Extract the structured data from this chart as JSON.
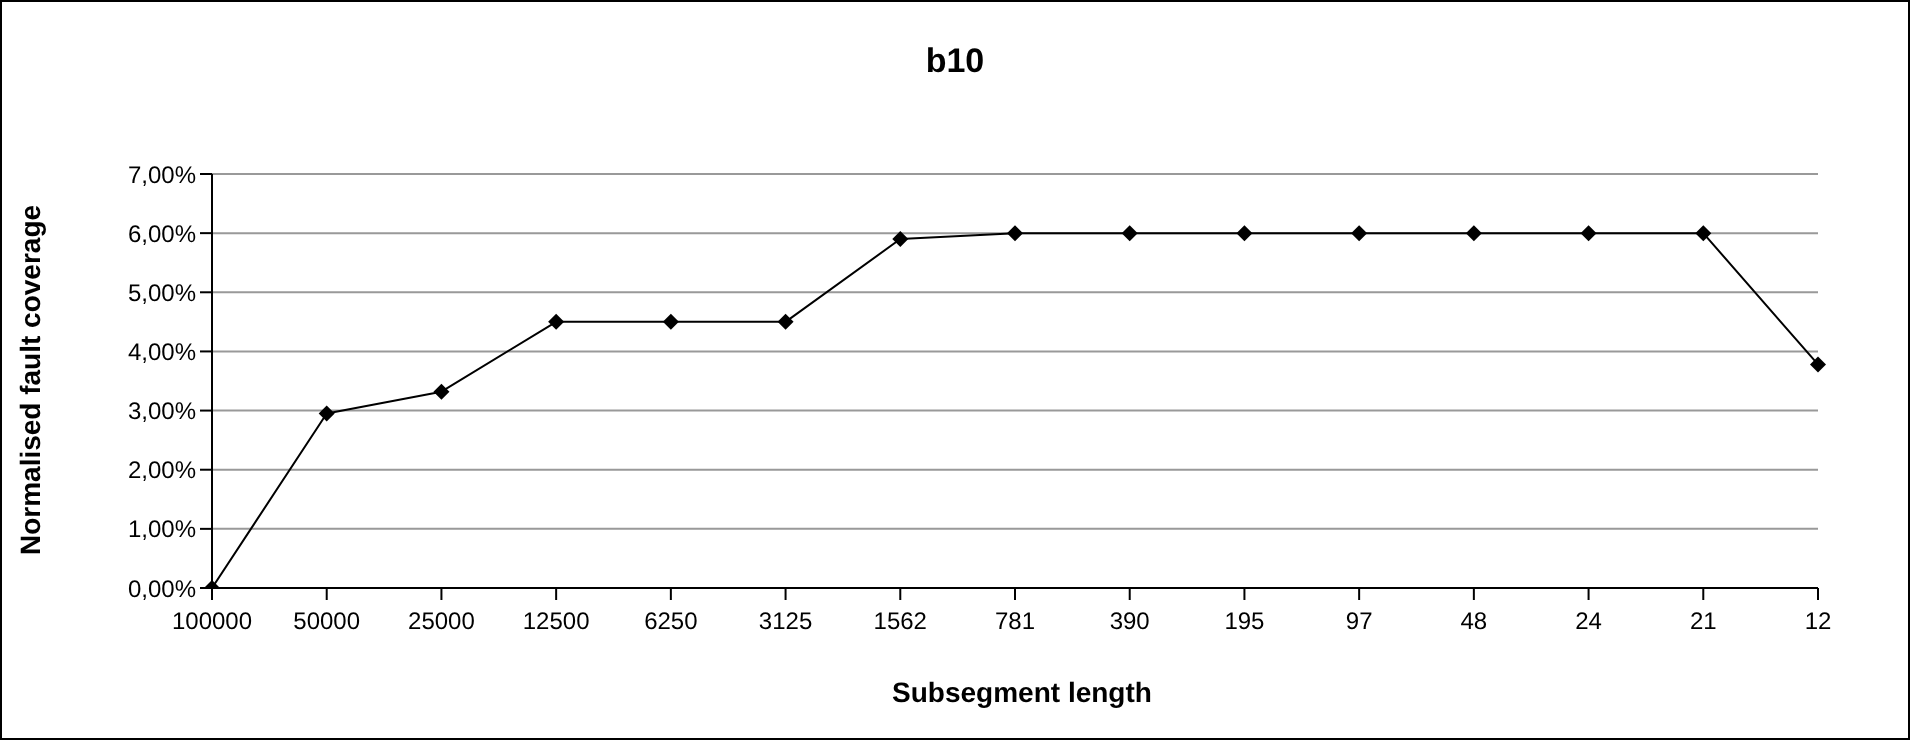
{
  "chart_data": {
    "type": "line",
    "title": "b10",
    "xlabel": "Subsegment length",
    "ylabel": "Normalised fault coverage",
    "categories": [
      "100000",
      "50000",
      "25000",
      "12500",
      "6250",
      "3125",
      "1562",
      "781",
      "390",
      "195",
      "97",
      "48",
      "24",
      "21",
      "12"
    ],
    "series": [
      {
        "color": "#000000",
        "values": [
          0,
          2.95,
          3.32,
          4.5,
          4.5,
          4.5,
          5.9,
          6,
          6,
          6,
          6,
          6,
          6,
          6,
          3.78
        ]
      }
    ],
    "ylim": [
      0,
      7
    ],
    "yticks": [
      {
        "value": 0,
        "label": "0,00%"
      },
      {
        "value": 1,
        "label": "1,00%"
      },
      {
        "value": 2,
        "label": "2,00%"
      },
      {
        "value": 3,
        "label": "3,00%"
      },
      {
        "value": 4,
        "label": "4,00%"
      },
      {
        "value": 5,
        "label": "5,00%"
      },
      {
        "value": 6,
        "label": "6,00%"
      },
      {
        "value": 7,
        "label": "7,00%"
      }
    ],
    "grid": "y",
    "legend": false,
    "marker": "diamond",
    "line_style": "solid"
  }
}
